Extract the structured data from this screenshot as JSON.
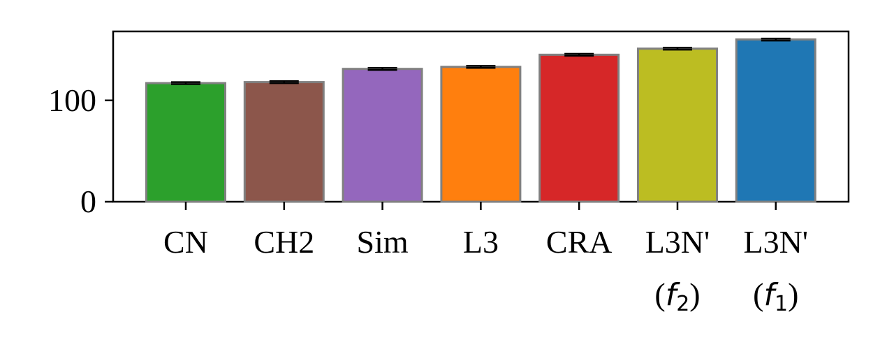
{
  "chart_data": {
    "type": "bar",
    "title": "",
    "xlabel": "",
    "ylabel": "",
    "categories": [
      {
        "label": "CN",
        "sub": null
      },
      {
        "label": "CH2",
        "sub": null
      },
      {
        "label": "Sim",
        "sub": null
      },
      {
        "label": "L3",
        "sub": null
      },
      {
        "label": "CRA",
        "sub": null
      },
      {
        "label": "L3N'",
        "sub": {
          "open": "(",
          "var": "f",
          "index": "2",
          "close": ")"
        }
      },
      {
        "label": "L3N'",
        "sub": {
          "open": "(",
          "var": "f",
          "index": "1",
          "close": ")"
        }
      }
    ],
    "values": [
      117,
      118,
      131,
      133,
      145,
      151,
      160
    ],
    "errors": [
      1,
      1,
      1,
      1,
      1,
      1,
      1
    ],
    "colors": [
      "#2ca02c",
      "#8c564b",
      "#9467bd",
      "#ff7f0e",
      "#d62728",
      "#bcbd22",
      "#1f77b4"
    ],
    "bar_edge_color": "#808080",
    "error_color": "#000000",
    "ylim": [
      0,
      168
    ],
    "yticks": [
      0,
      100
    ],
    "ytick_labels": [
      "0",
      "100"
    ],
    "grid": false,
    "legend": "none"
  }
}
